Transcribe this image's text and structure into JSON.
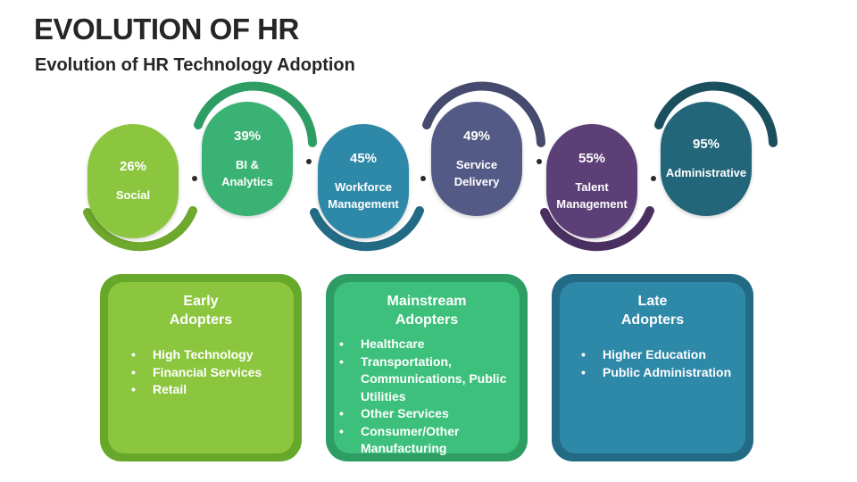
{
  "title": "EVOLUTION OF HR",
  "subtitle": "Evolution of HR Technology  Adoption",
  "stages": [
    {
      "percent": "26%",
      "label": "Social",
      "color": "#8cc63f"
    },
    {
      "percent": "39%",
      "label": "BI &\nAnalytics",
      "color": "#39b273"
    },
    {
      "percent": "45%",
      "label": "Workforce\nManagement",
      "color": "#2e88a8"
    },
    {
      "percent": "49%",
      "label": "Service\nDelivery",
      "color": "#535a85"
    },
    {
      "percent": "55%",
      "label": "Talent\nManagement",
      "color": "#5c3f76"
    },
    {
      "percent": "95%",
      "label": "Administrative",
      "color": "#236679"
    }
  ],
  "groups": [
    {
      "title": "Early\nAdopters",
      "items": [
        "High Technology",
        "Financial Services",
        "Retail"
      ],
      "color": "#8cc63f",
      "border": "#67a82a"
    },
    {
      "title": "Mainstream\nAdopters",
      "items": [
        "Healthcare",
        "Transportation, Communications, Public Utilities",
        "Other Services",
        "Consumer/Other Manufacturing"
      ],
      "color": "#3cc07c",
      "border": "#2e9d63"
    },
    {
      "title": "Late\nAdopters",
      "items": [
        "Higher Education",
        "Public Administration"
      ],
      "color": "#2e88a8",
      "border": "#236a85"
    }
  ]
}
